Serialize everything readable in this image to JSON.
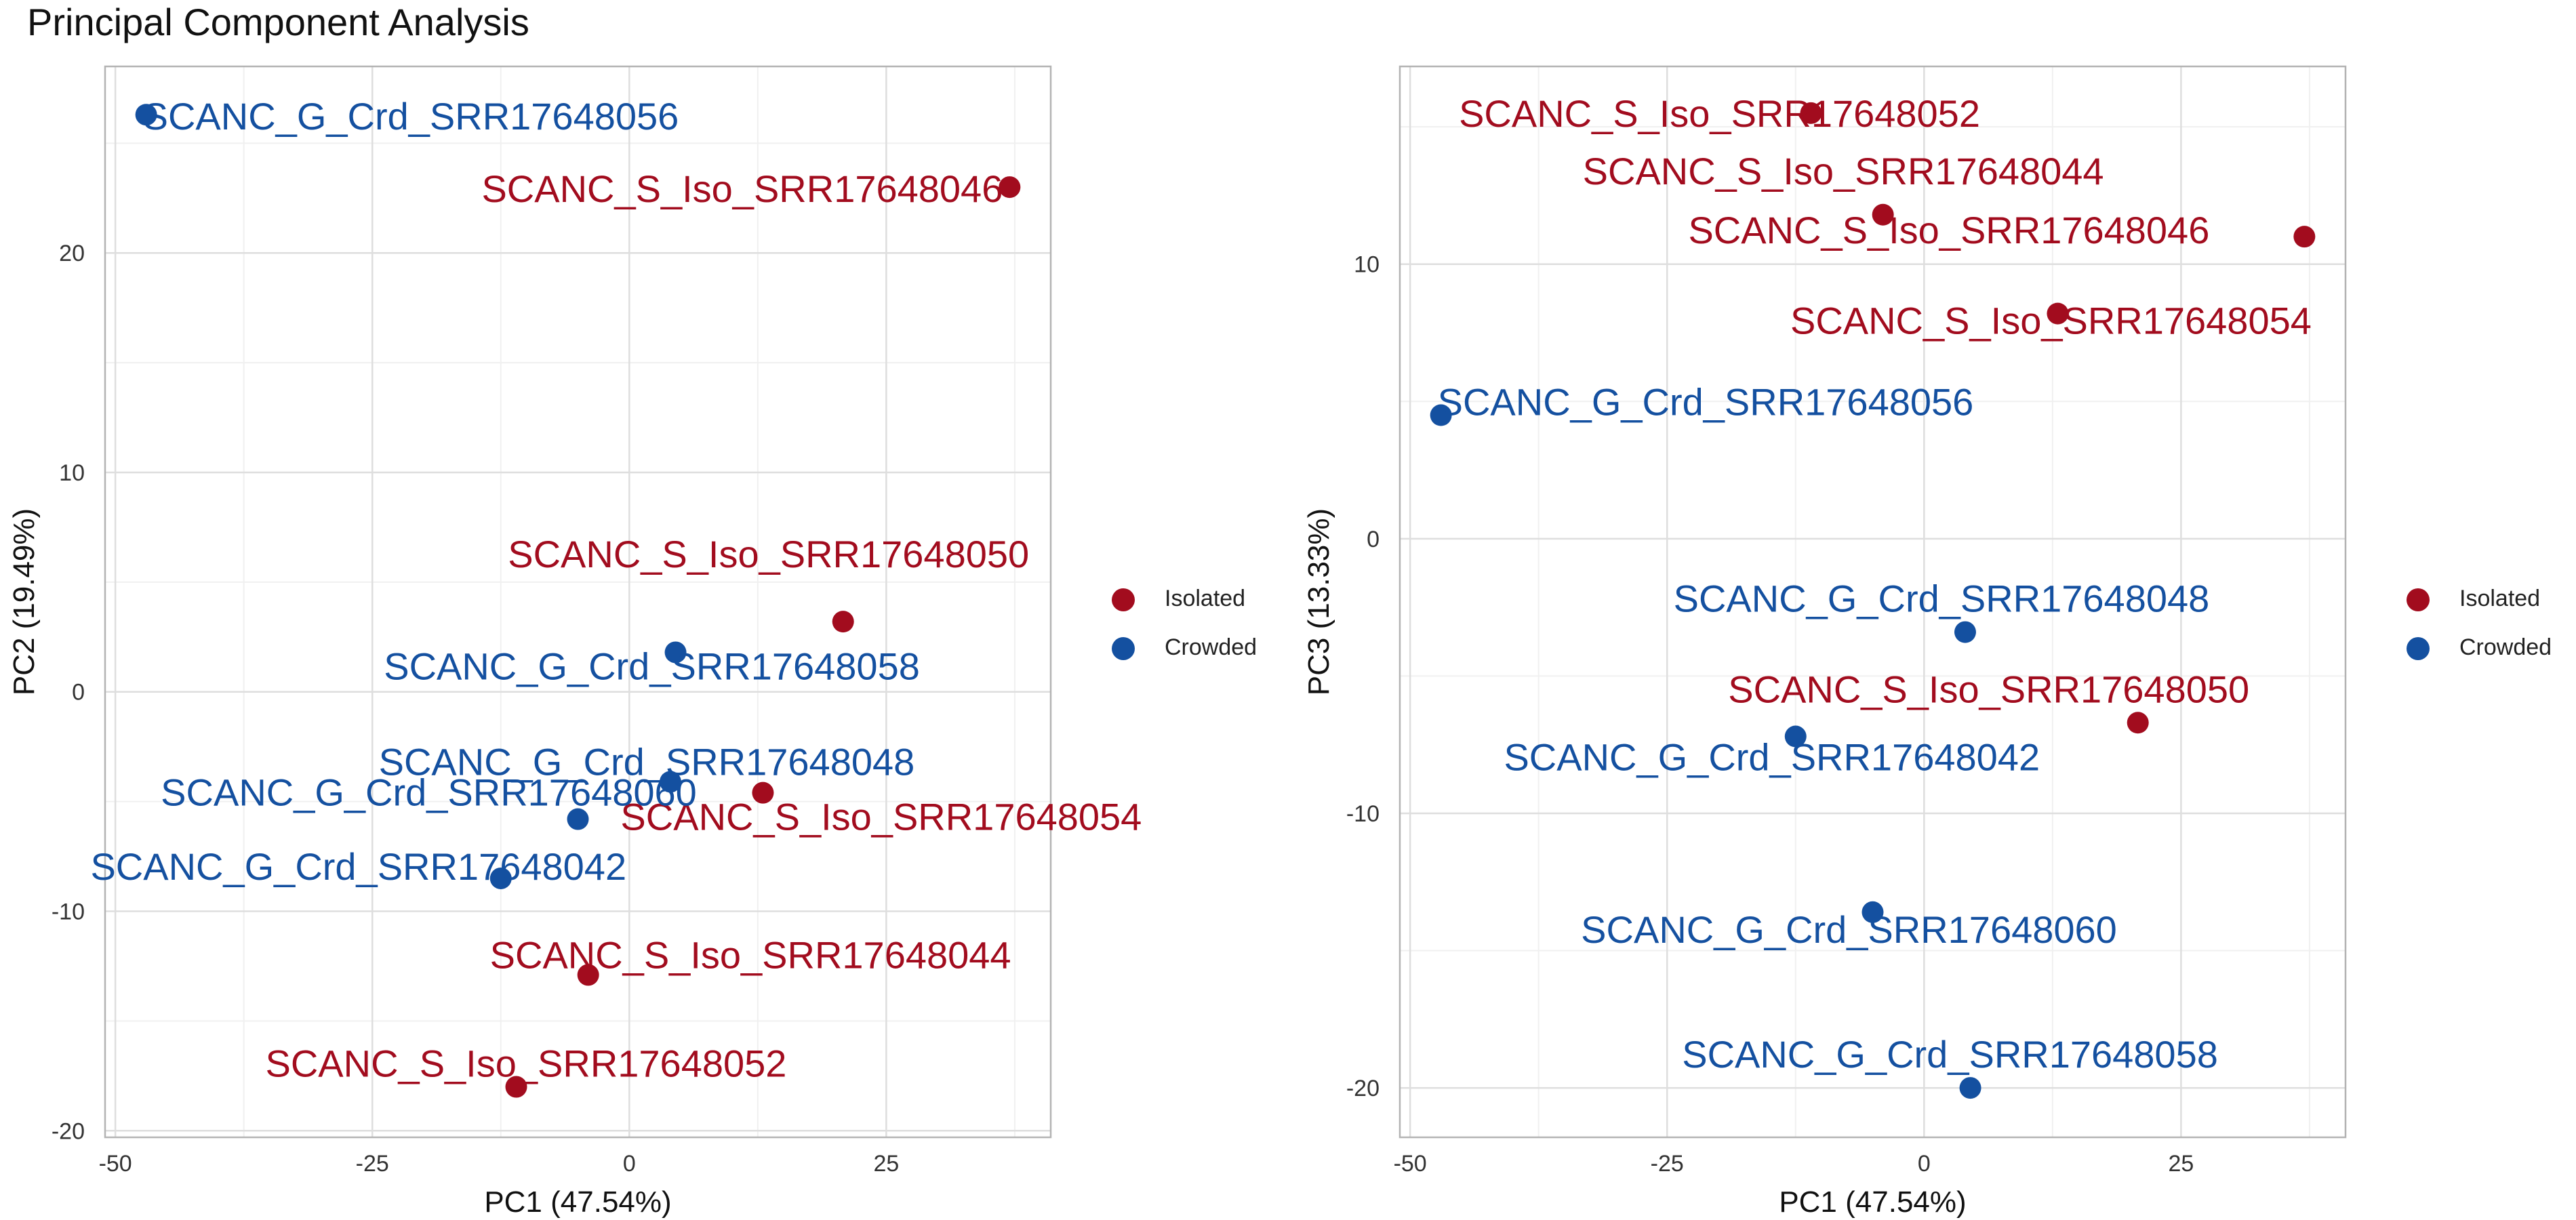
{
  "title": "Principal Component Analysis",
  "colors": {
    "Isolated": "#a20c1e",
    "Crowded": "#1450a0"
  },
  "legend": [
    {
      "label": "Isolated",
      "color": "#a20c1e"
    },
    {
      "label": "Crowded",
      "color": "#1450a0"
    }
  ],
  "chart_data": [
    {
      "type": "scatter",
      "xlabel": "PC1 (47.54%)",
      "ylabel": "PC2 (19.49%)",
      "xlim": [
        -51,
        41
      ],
      "ylim": [
        -20.3,
        28.5
      ],
      "xticks": [
        -50,
        -25,
        0,
        25
      ],
      "xtick_labels": [
        "-50",
        "-25",
        "0",
        "25"
      ],
      "yticks": [
        -20,
        -10,
        0,
        10,
        20
      ],
      "ytick_labels": [
        "-20",
        "-10",
        "0",
        "10",
        "20"
      ],
      "grid": true,
      "legend_position": "right",
      "series": [
        {
          "name": "Isolated",
          "points": [
            {
              "label": "SCANC_S_Iso_SRR17648046",
              "x": 37.0,
              "y": 23.0
            },
            {
              "label": "SCANC_S_Iso_SRR17648050",
              "x": 20.8,
              "y": 3.2
            },
            {
              "label": "SCANC_S_Iso_SRR17648054",
              "x": 13.0,
              "y": -4.6
            },
            {
              "label": "SCANC_S_Iso_SRR17648044",
              "x": -4.0,
              "y": -12.9
            },
            {
              "label": "SCANC_S_Iso_SRR17648052",
              "x": -11.0,
              "y": -18.0
            }
          ]
        },
        {
          "name": "Crowded",
          "points": [
            {
              "label": "SCANC_G_Crd_SRR17648056",
              "x": -47.0,
              "y": 26.3
            },
            {
              "label": "SCANC_G_Crd_SRR17648058",
              "x": 4.5,
              "y": 1.8
            },
            {
              "label": "SCANC_G_Crd_SRR17648048",
              "x": 4.0,
              "y": -4.1
            },
            {
              "label": "SCANC_G_Crd_SRR17648060",
              "x": -5.0,
              "y": -5.8
            },
            {
              "label": "SCANC_G_Crd_SRR17648042",
              "x": -12.5,
              "y": -8.5
            }
          ]
        }
      ]
    },
    {
      "type": "scatter",
      "xlabel": "PC1 (47.54%)",
      "ylabel": "PC3 (13.33%)",
      "xlim": [
        -51,
        41
      ],
      "ylim": [
        -21.8,
        17.2
      ],
      "xticks": [
        -50,
        -25,
        0,
        25
      ],
      "xtick_labels": [
        "-50",
        "-25",
        "0",
        "25"
      ],
      "yticks": [
        -20,
        -10,
        0,
        10
      ],
      "ytick_labels": [
        "-20",
        "-10",
        "0",
        "10"
      ],
      "grid": true,
      "legend_position": "right",
      "series": [
        {
          "name": "Isolated",
          "points": [
            {
              "label": "SCANC_S_Iso_SRR17648052",
              "x": -11.0,
              "y": 15.5
            },
            {
              "label": "SCANC_S_Iso_SRR17648044",
              "x": -4.0,
              "y": 11.8
            },
            {
              "label": "SCANC_S_Iso_SRR17648046",
              "x": 37.0,
              "y": 11.0
            },
            {
              "label": "SCANC_S_Iso_SRR17648054",
              "x": 13.0,
              "y": 8.2
            },
            {
              "label": "SCANC_S_Iso_SRR17648050",
              "x": 20.8,
              "y": -6.7
            }
          ]
        },
        {
          "name": "Crowded",
          "points": [
            {
              "label": "SCANC_G_Crd_SRR17648056",
              "x": -47.0,
              "y": 4.5
            },
            {
              "label": "SCANC_G_Crd_SRR17648048",
              "x": 4.0,
              "y": -3.4
            },
            {
              "label": "SCANC_G_Crd_SRR17648042",
              "x": -12.5,
              "y": -7.2
            },
            {
              "label": "SCANC_G_Crd_SRR17648060",
              "x": -5.0,
              "y": -13.6
            },
            {
              "label": "SCANC_G_Crd_SRR17648058",
              "x": 4.5,
              "y": -20.0
            }
          ]
        }
      ]
    }
  ]
}
